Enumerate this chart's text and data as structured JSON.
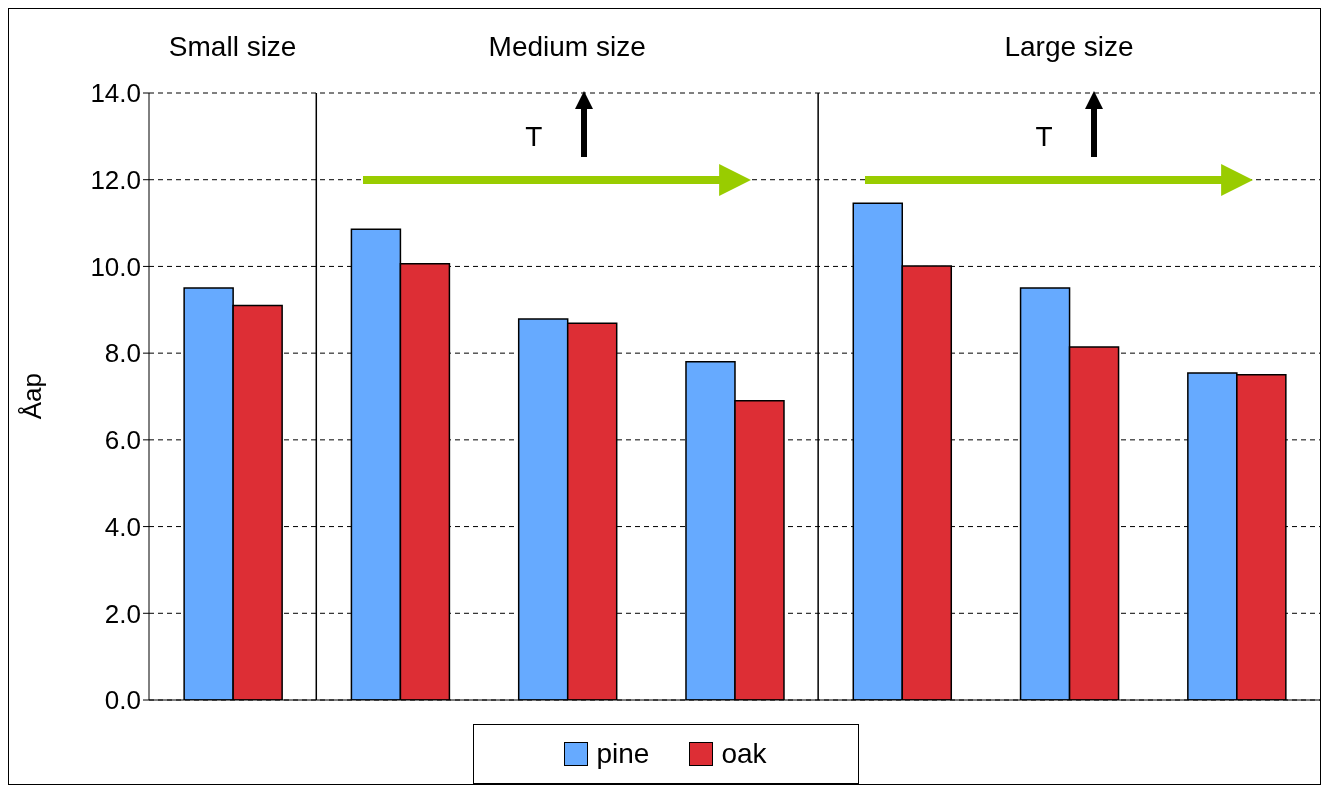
{
  "chart_data": {
    "type": "bar",
    "ylabel": "Åap",
    "categories": [
      null,
      null,
      null,
      null,
      null,
      null,
      null
    ],
    "series": [
      {
        "name": "pine",
        "color": "#66aaff",
        "values": [
          9.5,
          10.86,
          8.79,
          7.8,
          11.46,
          9.5,
          7.54
        ]
      },
      {
        "name": "oak",
        "color": "#dd2e35",
        "values": [
          9.1,
          10.06,
          8.69,
          6.9,
          10.01,
          8.14,
          7.5
        ]
      }
    ],
    "ylim": [
      0,
      14
    ],
    "yticks": [
      {
        "value": 0,
        "label": "0.0"
      },
      {
        "value": 2,
        "label": "2.0"
      },
      {
        "value": 4,
        "label": "4.0"
      },
      {
        "value": 6,
        "label": "6.0"
      },
      {
        "value": 8,
        "label": "8.0"
      },
      {
        "value": 10,
        "label": "10.0"
      },
      {
        "value": 12,
        "label": "12.0"
      },
      {
        "value": 14,
        "label": "14.0"
      }
    ],
    "grid": "y",
    "legend": "bottom",
    "tick_labels": "y",
    "annotations": [
      "Small size",
      "Medium size",
      "T",
      "Large size",
      "T"
    ]
  }
}
